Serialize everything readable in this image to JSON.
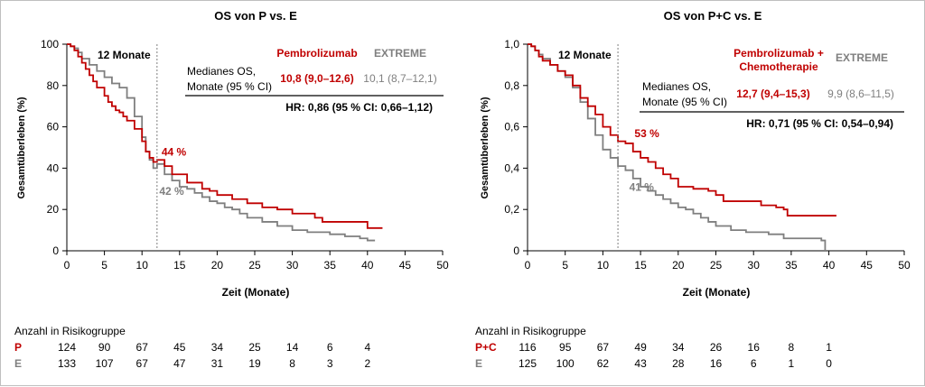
{
  "colors": {
    "pembrolizumab": "#c00000",
    "extreme": "#7f7f7f",
    "axis": "#000000"
  },
  "chart_data": [
    {
      "type": "line",
      "title": "OS von P vs. E",
      "xlabel": "Zeit (Monate)",
      "ylabel": "Gesamtüberleben (%)",
      "xlim": [
        0,
        50
      ],
      "ylim": [
        0,
        100
      ],
      "xticks": [
        "0",
        "5",
        "10",
        "15",
        "20",
        "25",
        "30",
        "35",
        "40",
        "45",
        "50"
      ],
      "yticks": [
        "0",
        "20",
        "40",
        "60",
        "80",
        "100"
      ],
      "marker_label": "12 Monate",
      "marker_x": 12,
      "legend": {
        "col1": "Pembrolizumab",
        "col2": "EXTREME",
        "row_label_1": "Medianes OS,",
        "row_label_2": "Monate (95 % CI)",
        "val1": "10,8 (9,0–12,6)",
        "val2": "10,1 (8,7–12,1)",
        "hr": "HR: 0,86 (95 % CI: 0,66–1,12)"
      },
      "annotations": [
        {
          "text": "44 %",
          "x": 12.6,
          "y": 46,
          "series": 0
        },
        {
          "text": "42 %",
          "x": 12.3,
          "y": 27,
          "series": 1
        }
      ],
      "series": [
        {
          "name": "Pembrolizumab",
          "color": "#c00000",
          "points": [
            [
              0,
              100
            ],
            [
              0.5,
              99
            ],
            [
              1,
              97
            ],
            [
              1.5,
              94
            ],
            [
              2,
              91
            ],
            [
              2.5,
              88
            ],
            [
              3,
              85
            ],
            [
              3.5,
              82
            ],
            [
              4,
              79
            ],
            [
              5,
              75
            ],
            [
              5.5,
              72
            ],
            [
              6,
              70
            ],
            [
              6.5,
              68
            ],
            [
              7,
              67
            ],
            [
              7.5,
              65
            ],
            [
              8,
              63
            ],
            [
              9,
              59
            ],
            [
              10,
              53
            ],
            [
              10.5,
              48
            ],
            [
              11,
              45
            ],
            [
              11.5,
              43
            ],
            [
              12,
              44
            ],
            [
              13,
              41
            ],
            [
              14,
              37
            ],
            [
              16,
              33
            ],
            [
              18,
              30
            ],
            [
              19,
              29
            ],
            [
              20,
              27
            ],
            [
              22,
              25
            ],
            [
              24,
              23
            ],
            [
              26,
              21
            ],
            [
              28,
              20
            ],
            [
              30,
              18
            ],
            [
              33,
              16
            ],
            [
              34,
              14
            ],
            [
              36,
              14
            ],
            [
              39,
              14
            ],
            [
              40,
              11
            ],
            [
              42,
              11
            ]
          ]
        },
        {
          "name": "EXTREME",
          "color": "#7f7f7f",
          "points": [
            [
              0,
              100
            ],
            [
              0.5,
              99
            ],
            [
              1,
              98
            ],
            [
              1.5,
              96
            ],
            [
              2,
              93
            ],
            [
              3,
              90
            ],
            [
              4,
              87
            ],
            [
              5,
              84
            ],
            [
              6,
              81
            ],
            [
              7,
              79
            ],
            [
              8,
              74
            ],
            [
              9,
              65
            ],
            [
              10,
              55
            ],
            [
              10.5,
              48
            ],
            [
              11,
              44
            ],
            [
              11.5,
              40
            ],
            [
              12,
              42
            ],
            [
              13,
              37
            ],
            [
              14,
              34
            ],
            [
              15,
              31
            ],
            [
              16,
              30
            ],
            [
              17,
              28
            ],
            [
              18,
              26
            ],
            [
              19,
              24
            ],
            [
              20,
              23
            ],
            [
              21,
              21
            ],
            [
              22,
              20
            ],
            [
              23,
              18
            ],
            [
              24,
              16
            ],
            [
              26,
              14
            ],
            [
              28,
              12
            ],
            [
              30,
              10
            ],
            [
              32,
              9
            ],
            [
              35,
              8
            ],
            [
              37,
              7
            ],
            [
              39,
              6
            ],
            [
              40,
              5
            ],
            [
              41,
              5
            ]
          ]
        }
      ],
      "risk": {
        "header": "Anzahl in Risikogruppe",
        "rows": [
          {
            "label": "P",
            "color": "#c00000",
            "values": [
              "124",
              "90",
              "67",
              "45",
              "34",
              "25",
              "14",
              "6",
              "4"
            ]
          },
          {
            "label": "E",
            "color": "#7f7f7f",
            "values": [
              "133",
              "107",
              "67",
              "47",
              "31",
              "19",
              "8",
              "3",
              "2"
            ]
          }
        ]
      }
    },
    {
      "type": "line",
      "title": "OS von P+C vs. E",
      "xlabel": "Zeit (Monate)",
      "ylabel": "Gesamtüberleben (%)",
      "xlim": [
        0,
        50
      ],
      "ylim": [
        0,
        1
      ],
      "xticks": [
        "0",
        "5",
        "10",
        "15",
        "20",
        "25",
        "30",
        "35",
        "40",
        "45",
        "50"
      ],
      "yticks": [
        "0",
        "0,2",
        "0,4",
        "0,6",
        "0,8",
        "1,0"
      ],
      "marker_label": "12 Monate",
      "marker_x": 12,
      "legend": {
        "col1_line1": "Pembrolizumab +",
        "col1_line2": "Chemotherapie",
        "col2": "EXTREME",
        "row_label_1": "Medianes OS,",
        "row_label_2": "Monate (95 % CI)",
        "val1": "12,7 (9,4–15,3)",
        "val2": "9,9 (8,6–11,5)",
        "hr": "HR: 0,71 (95 % CI: 0,54–0,94)"
      },
      "annotations": [
        {
          "text": "53 %",
          "x": 14.2,
          "y": 0.55,
          "series": 0
        },
        {
          "text": "41 %",
          "x": 13.5,
          "y": 0.29,
          "series": 1
        }
      ],
      "series": [
        {
          "name": "Pembrolizumab + Chemotherapie",
          "color": "#c00000",
          "points": [
            [
              0,
              1
            ],
            [
              0.5,
              0.99
            ],
            [
              1,
              0.97
            ],
            [
              1.5,
              0.94
            ],
            [
              2,
              0.92
            ],
            [
              3,
              0.9
            ],
            [
              4,
              0.87
            ],
            [
              5,
              0.85
            ],
            [
              6,
              0.8
            ],
            [
              7,
              0.74
            ],
            [
              8,
              0.7
            ],
            [
              9,
              0.66
            ],
            [
              10,
              0.6
            ],
            [
              11,
              0.56
            ],
            [
              12,
              0.53
            ],
            [
              13,
              0.52
            ],
            [
              14,
              0.48
            ],
            [
              15,
              0.45
            ],
            [
              16,
              0.43
            ],
            [
              17,
              0.4
            ],
            [
              18,
              0.37
            ],
            [
              19,
              0.35
            ],
            [
              20,
              0.31
            ],
            [
              22,
              0.3
            ],
            [
              24,
              0.29
            ],
            [
              25,
              0.27
            ],
            [
              26,
              0.24
            ],
            [
              28,
              0.24
            ],
            [
              30,
              0.24
            ],
            [
              31,
              0.22
            ],
            [
              33,
              0.21
            ],
            [
              34,
              0.2
            ],
            [
              34.5,
              0.17
            ],
            [
              36,
              0.17
            ],
            [
              38,
              0.17
            ],
            [
              41,
              0.17
            ]
          ]
        },
        {
          "name": "EXTREME",
          "color": "#7f7f7f",
          "points": [
            [
              0,
              1
            ],
            [
              0.5,
              0.99
            ],
            [
              1,
              0.97
            ],
            [
              1.5,
              0.95
            ],
            [
              2,
              0.93
            ],
            [
              3,
              0.9
            ],
            [
              4,
              0.87
            ],
            [
              5,
              0.84
            ],
            [
              6,
              0.79
            ],
            [
              7,
              0.72
            ],
            [
              8,
              0.64
            ],
            [
              9,
              0.56
            ],
            [
              10,
              0.49
            ],
            [
              11,
              0.45
            ],
            [
              12,
              0.41
            ],
            [
              13,
              0.39
            ],
            [
              14,
              0.35
            ],
            [
              15,
              0.31
            ],
            [
              16,
              0.29
            ],
            [
              17,
              0.27
            ],
            [
              18,
              0.25
            ],
            [
              19,
              0.23
            ],
            [
              20,
              0.21
            ],
            [
              21,
              0.2
            ],
            [
              22,
              0.18
            ],
            [
              23,
              0.16
            ],
            [
              24,
              0.14
            ],
            [
              25,
              0.12
            ],
            [
              27,
              0.1
            ],
            [
              29,
              0.09
            ],
            [
              32,
              0.08
            ],
            [
              34,
              0.06
            ],
            [
              36,
              0.06
            ],
            [
              38,
              0.06
            ],
            [
              39,
              0.05
            ],
            [
              39.5,
              0
            ]
          ]
        }
      ],
      "risk": {
        "header": "Anzahl in Risikogruppe",
        "rows": [
          {
            "label": "P+C",
            "color": "#c00000",
            "values": [
              "116",
              "95",
              "67",
              "49",
              "34",
              "26",
              "16",
              "8",
              "1"
            ]
          },
          {
            "label": "E",
            "color": "#7f7f7f",
            "values": [
              "125",
              "100",
              "62",
              "43",
              "28",
              "16",
              "6",
              "1",
              "0"
            ]
          }
        ]
      }
    }
  ]
}
